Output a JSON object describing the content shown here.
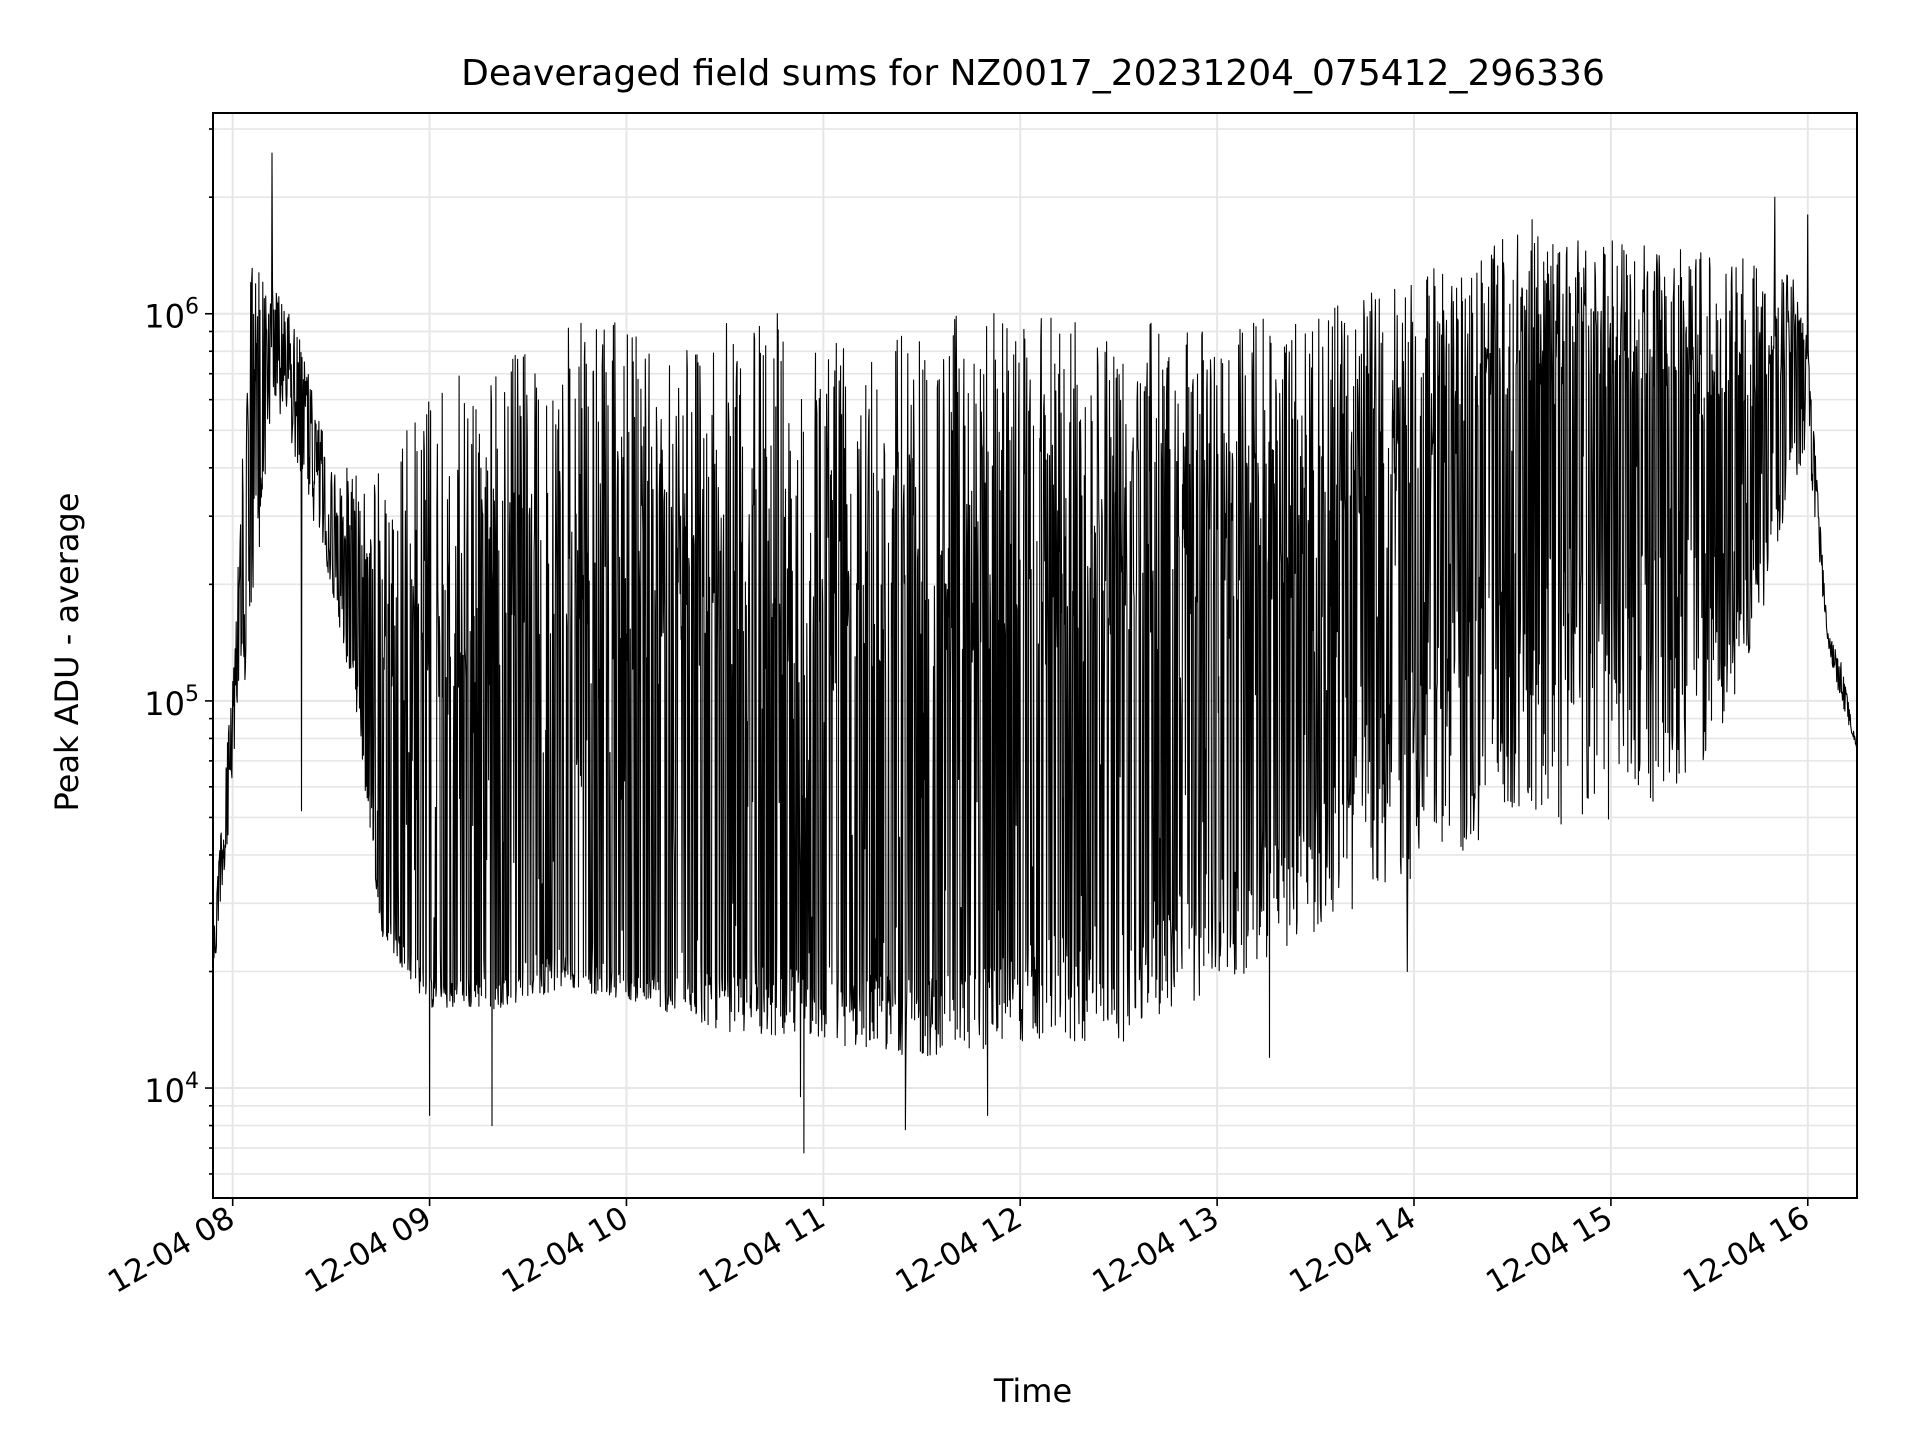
{
  "chart_data": {
    "type": "line",
    "title": "Deaveraged field sums for NZ0017_20231204_075412_296336",
    "xlabel": "Time",
    "ylabel": "Peak ADU - average",
    "yscale": "log",
    "grid": true,
    "legend": "none",
    "line_color": "#000000",
    "grid_color": "#e6e6e6",
    "xlim": [
      "2023-12-04 07:54",
      "2023-12-04 16:15"
    ],
    "ylim": [
      5200,
      3300000
    ],
    "x_ticks": [
      "2023-12-04 08:00",
      "2023-12-04 09:00",
      "2023-12-04 10:00",
      "2023-12-04 11:00",
      "2023-12-04 12:00",
      "2023-12-04 13:00",
      "2023-12-04 14:00",
      "2023-12-04 15:00",
      "2023-12-04 16:00"
    ],
    "x_tick_labels": [
      "12-04 08",
      "12-04 09",
      "12-04 10",
      "12-04 11",
      "12-04 12",
      "12-04 13",
      "12-04 14",
      "12-04 15",
      "12-04 16"
    ],
    "y_ticks": [
      10000,
      100000,
      1000000
    ],
    "y_tick_labels": [
      {
        "base": "10",
        "exp": "4"
      },
      {
        "base": "10",
        "exp": "5"
      },
      {
        "base": "10",
        "exp": "6"
      }
    ],
    "envelope": {
      "x": [
        "2023-12-04 07:54",
        "2023-12-04 08:00",
        "2023-12-04 08:06",
        "2023-12-04 08:12",
        "2023-12-04 08:20",
        "2023-12-04 08:30",
        "2023-12-04 08:38",
        "2023-12-04 08:45",
        "2023-12-04 09:00",
        "2023-12-04 09:20",
        "2023-12-04 09:40",
        "2023-12-04 10:00",
        "2023-12-04 10:30",
        "2023-12-04 11:00",
        "2023-12-04 11:30",
        "2023-12-04 12:00",
        "2023-12-04 12:30",
        "2023-12-04 13:00",
        "2023-12-04 13:30",
        "2023-12-04 14:00",
        "2023-12-04 14:30",
        "2023-12-04 15:00",
        "2023-12-04 15:30",
        "2023-12-04 15:45",
        "2023-12-04 15:55",
        "2023-12-04 16:00",
        "2023-12-04 16:06",
        "2023-12-04 16:10",
        "2023-12-04 16:15"
      ],
      "low": [
        18000,
        60000,
        150000,
        600000,
        400000,
        200000,
        90000,
        25000,
        16000,
        16000,
        18000,
        17000,
        14000,
        13000,
        12000,
        13000,
        13000,
        18000,
        25000,
        35000,
        45000,
        45000,
        70000,
        150000,
        350000,
        450000,
        140000,
        100000,
        75000
      ],
      "high": [
        25000,
        120000,
        1500000,
        1200000,
        900000,
        400000,
        400000,
        400000,
        650000,
        750000,
        950000,
        950000,
        950000,
        950000,
        1000000,
        1000000,
        950000,
        950000,
        1000000,
        1250000,
        1600000,
        1550000,
        1450000,
        1400000,
        1300000,
        850000,
        150000,
        130000,
        75000
      ],
      "base": [
        22000,
        90000,
        300000,
        900000,
        600000,
        250000,
        120000,
        30000,
        20000,
        20000,
        25000,
        20000,
        20000,
        22000,
        20000,
        25000,
        30000,
        40000,
        60000,
        150000,
        300000,
        300000,
        300000,
        250000,
        500000,
        700000,
        150000,
        110000,
        75000
      ]
    },
    "peaks": [
      {
        "x": "2023-12-04 08:12",
        "y": 2600000
      },
      {
        "x": "2023-12-04 15:50",
        "y": 2000000
      },
      {
        "x": "2023-12-04 16:00",
        "y": 1800000
      },
      {
        "x": "2023-12-04 14:36",
        "y": 1750000
      },
      {
        "x": "2023-12-04 11:52",
        "y": 1000000
      },
      {
        "x": "2023-12-04 10:46",
        "y": 1000000
      }
    ],
    "dips": [
      {
        "x": "2023-12-04 08:21",
        "y": 52000
      },
      {
        "x": "2023-12-04 09:00",
        "y": 8500
      },
      {
        "x": "2023-12-04 09:19",
        "y": 8000
      },
      {
        "x": "2023-12-04 10:54",
        "y": 6800
      },
      {
        "x": "2023-12-04 10:53",
        "y": 9500
      },
      {
        "x": "2023-12-04 11:25",
        "y": 7800
      },
      {
        "x": "2023-12-04 11:50",
        "y": 8500
      },
      {
        "x": "2023-12-04 13:16",
        "y": 12000
      },
      {
        "x": "2023-12-04 13:58",
        "y": 20000
      }
    ]
  }
}
